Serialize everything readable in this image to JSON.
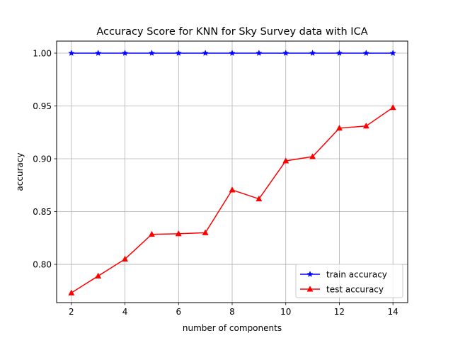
{
  "chart_data": {
    "type": "line",
    "title": "Accuracy Score for KNN for Sky Survey data with ICA",
    "xlabel": "number of components",
    "ylabel": "accuracy",
    "xlim": [
      1.45,
      14.55
    ],
    "ylim": [
      0.7638,
      1.0114
    ],
    "x_ticks": [
      2,
      4,
      6,
      8,
      10,
      12,
      14
    ],
    "x_tick_labels": [
      "2",
      "4",
      "6",
      "8",
      "10",
      "12",
      "14"
    ],
    "y_ticks": [
      0.8,
      0.85,
      0.9,
      0.95,
      1.0
    ],
    "y_tick_labels": [
      "0.80",
      "0.85",
      "0.90",
      "0.95",
      "1.00"
    ],
    "grid": true,
    "legend_position": "lower-right",
    "x": [
      2,
      3,
      4,
      5,
      6,
      7,
      8,
      9,
      10,
      11,
      12,
      13,
      14
    ],
    "series": [
      {
        "name": "train accuracy",
        "color": "#0000ff",
        "marker": "star",
        "values": [
          1.0,
          1.0,
          1.0,
          1.0,
          1.0,
          1.0,
          1.0,
          1.0,
          1.0,
          1.0,
          1.0,
          1.0,
          1.0
        ]
      },
      {
        "name": "test accuracy",
        "color": "#ff0000",
        "marker": "triangle-up",
        "values": [
          0.773,
          0.789,
          0.805,
          0.8285,
          0.829,
          0.83,
          0.8705,
          0.862,
          0.898,
          0.902,
          0.929,
          0.931,
          0.9485
        ]
      }
    ]
  }
}
